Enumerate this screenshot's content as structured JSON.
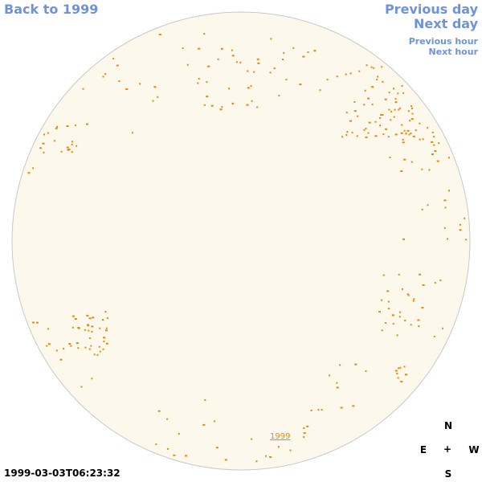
{
  "nav": {
    "back": "Back to 1999",
    "previous_day": "Previous day",
    "next_day": "Next day",
    "previous_hour": "Previous hour",
    "next_hour": "Next hour"
  },
  "timestamp": "1999-03-03T06:23:32",
  "compass": {
    "north": "N",
    "east": "E",
    "center": "+",
    "west": "W",
    "south": "S"
  },
  "sky": {
    "year_label": "1999",
    "colors": {
      "disk_fill": "#fdf8ec",
      "disk_stroke": "#c8c8c8",
      "object": "#e8870a",
      "link": "#6f93d8"
    }
  }
}
